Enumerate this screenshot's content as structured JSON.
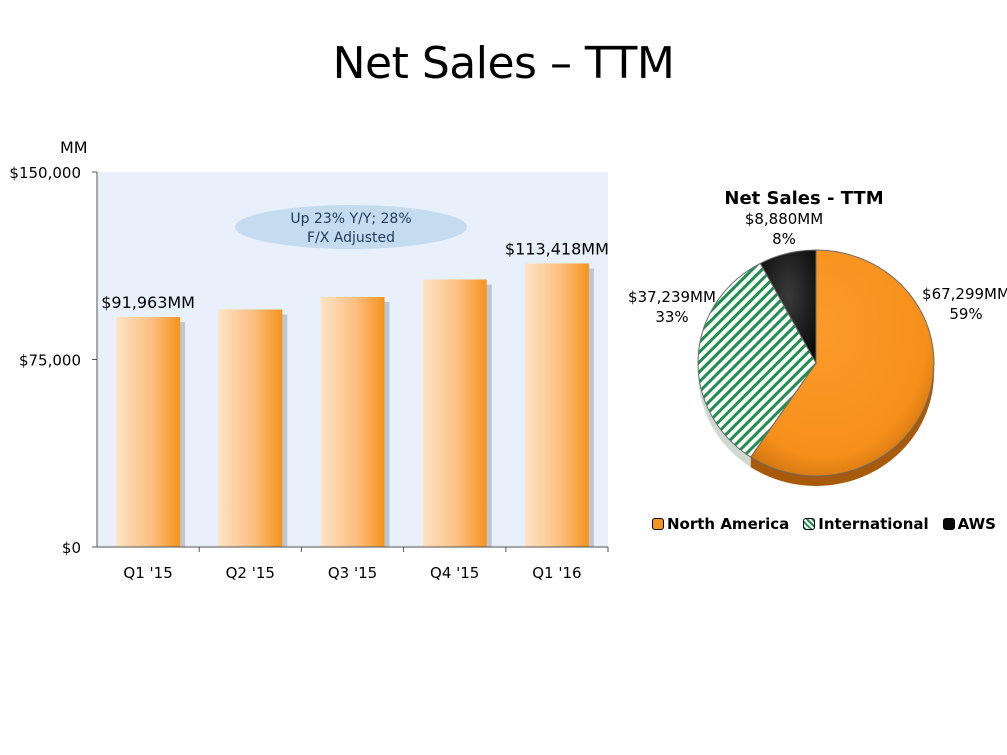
{
  "title": "Net Sales – TTM",
  "colors": {
    "bar_light": "#fde0c0",
    "bar_dark": "#f7961f",
    "plot_bg": "#e8f1fb",
    "north_america": "#f7941e",
    "international": "#1e8f4e",
    "aws": "#0a0a0a"
  },
  "chart_data": [
    {
      "type": "bar",
      "unit_label": "MM",
      "categories": [
        "Q1 '15",
        "Q2 '15",
        "Q3 '15",
        "Q4 '15",
        "Q1 '16"
      ],
      "values": [
        91963,
        95000,
        100000,
        107000,
        113418
      ],
      "ylim": [
        0,
        150000
      ],
      "yticks": [
        "$150,000",
        "$75,000",
        "$0"
      ],
      "data_labels": [
        "$91,963MM",
        "",
        "",
        "",
        "$113,418MM"
      ],
      "annotation": [
        "Up 23% Y/Y; 28%",
        "F/X Adjusted"
      ],
      "grid": false
    },
    {
      "type": "pie",
      "title": "Net Sales - TTM",
      "slices": [
        {
          "name": "North America",
          "value": 67299,
          "value_label": "$67,299MM",
          "percent_label": "59%"
        },
        {
          "name": "International",
          "value": 37239,
          "value_label": "$37,239MM",
          "percent_label": "33%"
        },
        {
          "name": "AWS",
          "value": 8880,
          "value_label": "$8,880MM",
          "percent_label": "8%"
        }
      ],
      "legend_position": "bottom"
    }
  ]
}
